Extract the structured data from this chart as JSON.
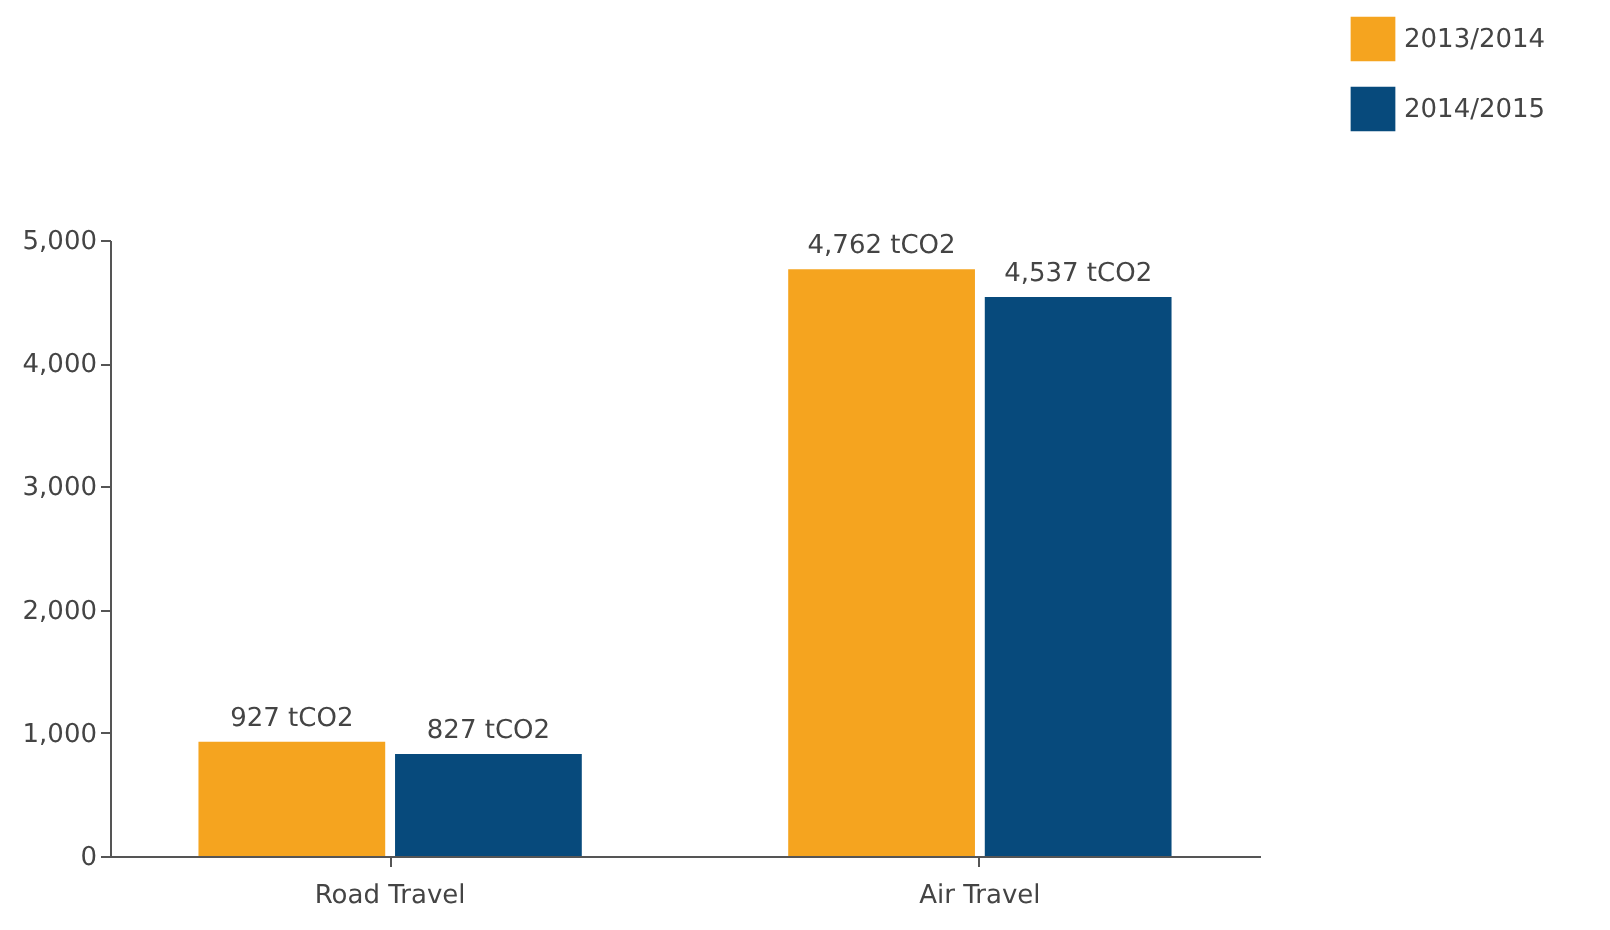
{
  "chart_data": {
    "type": "bar",
    "categories": [
      "Road Travel",
      "Air Travel"
    ],
    "series": [
      {
        "name": "2013/2014",
        "color": "#f5a41f",
        "values": [
          927,
          4762
        ],
        "value_labels": [
          "927 tCO2",
          "4,762 tCO2"
        ]
      },
      {
        "name": "2014/2015",
        "color": "#074a7c",
        "values": [
          827,
          4537
        ],
        "value_labels": [
          "827  tCO2",
          "4,537 tCO2"
        ]
      }
    ],
    "ylim": [
      0,
      5000
    ],
    "yticks": [
      {
        "value": 0,
        "label": "0"
      },
      {
        "value": 1000,
        "label": "1,000"
      },
      {
        "value": 2000,
        "label": "2,000"
      },
      {
        "value": 3000,
        "label": "3,000"
      },
      {
        "value": 4000,
        "label": "4,000"
      },
      {
        "value": 5000,
        "label": "5,000"
      }
    ],
    "grid": false,
    "legend": "top right"
  }
}
